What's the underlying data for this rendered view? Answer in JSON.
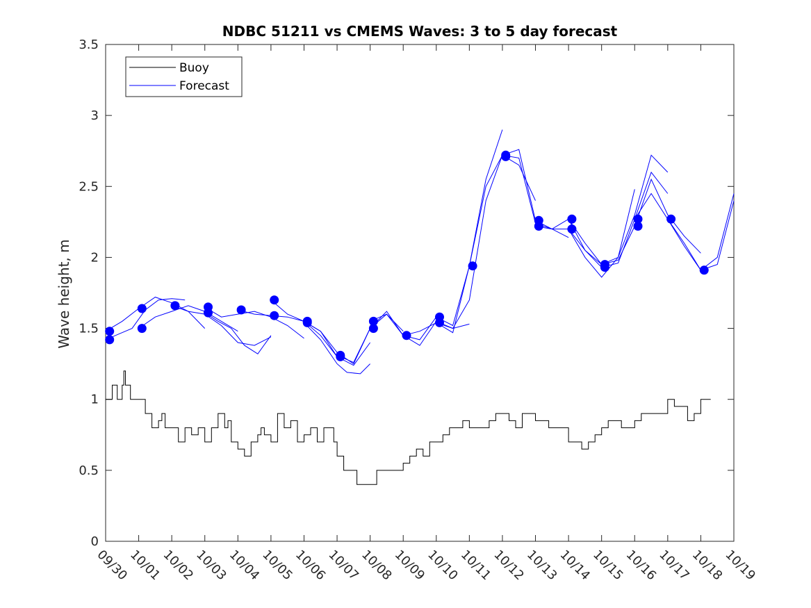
{
  "chart_data": {
    "type": "line",
    "title": "NDBC 51211 vs CMEMS Waves: 3 to 5 day forecast",
    "xlabel": "",
    "ylabel": "Wave height, m",
    "xlim": [
      0,
      19
    ],
    "ylim": [
      0,
      3.5
    ],
    "yticks": [
      0,
      0.5,
      1,
      1.5,
      2,
      2.5,
      3,
      3.5
    ],
    "ytick_labels": [
      "0",
      "0.5",
      "1",
      "1.5",
      "2",
      "2.5",
      "3",
      "3.5"
    ],
    "xtick_labels": [
      "09/30",
      "10/01",
      "10/02",
      "10/03",
      "10/04",
      "10/05",
      "10/06",
      "10/07",
      "10/08",
      "10/09",
      "10/10",
      "10/11",
      "10/12",
      "10/13",
      "10/14",
      "10/15",
      "10/16",
      "10/17",
      "10/18",
      "10/19"
    ],
    "legend": {
      "position": "top-left",
      "entries": [
        "Buoy",
        "Forecast"
      ]
    },
    "colors": {
      "buoy": "#000000",
      "forecast": "#0000ff",
      "axes": "#262626"
    },
    "buoy_series": {
      "name": "Buoy",
      "x": [
        0,
        0.08,
        0.2,
        0.35,
        0.5,
        0.55,
        0.6,
        0.75,
        0.9,
        1.0,
        1.2,
        1.4,
        1.6,
        1.7,
        1.8,
        2.0,
        2.2,
        2.4,
        2.6,
        2.8,
        3.0,
        3.2,
        3.4,
        3.6,
        3.7,
        3.8,
        4.0,
        4.2,
        4.4,
        4.6,
        4.7,
        4.8,
        5.0,
        5.2,
        5.4,
        5.6,
        5.8,
        6.0,
        6.2,
        6.4,
        6.5,
        6.6,
        6.9,
        7.0,
        7.2,
        7.4,
        7.6,
        7.8,
        8.0,
        8.2,
        8.4,
        8.6,
        8.8,
        9.0,
        9.2,
        9.4,
        9.6,
        9.8,
        10.0,
        10.2,
        10.4,
        10.6,
        10.8,
        11.0,
        11.2,
        11.4,
        11.6,
        11.8,
        12.0,
        12.2,
        12.4,
        12.6,
        12.8,
        13.0,
        13.2,
        13.4,
        13.6,
        13.8,
        14.0,
        14.2,
        14.4,
        14.6,
        14.8,
        15.0,
        15.2,
        15.4,
        15.6,
        15.8,
        16.0,
        16.2,
        16.4,
        16.6,
        16.8,
        17.0,
        17.2,
        17.4,
        17.6,
        17.8,
        18.0,
        18.2,
        18.3
      ],
      "y": [
        1.0,
        1.0,
        1.1,
        1.0,
        1.1,
        1.2,
        1.1,
        1.0,
        1.0,
        1.0,
        0.9,
        0.8,
        0.85,
        0.9,
        0.8,
        0.8,
        0.7,
        0.8,
        0.75,
        0.8,
        0.7,
        0.8,
        0.9,
        0.8,
        0.85,
        0.7,
        0.65,
        0.6,
        0.7,
        0.75,
        0.8,
        0.75,
        0.7,
        0.9,
        0.8,
        0.85,
        0.7,
        0.75,
        0.8,
        0.7,
        0.7,
        0.8,
        0.7,
        0.6,
        0.5,
        0.5,
        0.4,
        0.4,
        0.4,
        0.5,
        0.5,
        0.5,
        0.5,
        0.55,
        0.6,
        0.65,
        0.6,
        0.7,
        0.7,
        0.75,
        0.8,
        0.8,
        0.85,
        0.8,
        0.8,
        0.8,
        0.85,
        0.9,
        0.9,
        0.85,
        0.8,
        0.9,
        0.9,
        0.85,
        0.85,
        0.8,
        0.8,
        0.8,
        0.7,
        0.7,
        0.65,
        0.7,
        0.75,
        0.8,
        0.85,
        0.85,
        0.8,
        0.8,
        0.85,
        0.9,
        0.9,
        0.9,
        0.9,
        1.0,
        0.95,
        0.95,
        0.85,
        0.9,
        1.0,
        1.0,
        1.0
      ]
    },
    "forecast_series": [
      {
        "name": "Forecast run 1",
        "x": [
          0,
          0.5,
          1,
          1.5,
          2,
          2.5,
          3
        ],
        "y": [
          1.48,
          1.55,
          1.64,
          1.72,
          1.68,
          1.62,
          1.5
        ]
      },
      {
        "name": "Forecast run 2",
        "x": [
          0,
          0.4,
          0.8,
          1.2,
          1.6,
          2,
          2.4
        ],
        "y": [
          1.42,
          1.46,
          1.5,
          1.63,
          1.7,
          1.71,
          1.7
        ]
      },
      {
        "name": "Forecast run 3",
        "x": [
          1,
          1.5,
          2,
          2.5,
          3,
          3.5,
          4
        ],
        "y": [
          1.5,
          1.58,
          1.62,
          1.66,
          1.62,
          1.55,
          1.48
        ]
      },
      {
        "name": "Forecast run 4",
        "x": [
          2,
          2.5,
          3,
          3.5,
          4,
          4.5,
          5
        ],
        "y": [
          1.66,
          1.62,
          1.6,
          1.52,
          1.4,
          1.38,
          1.44
        ]
      },
      {
        "name": "Forecast run 5",
        "x": [
          3,
          3.5,
          4,
          4.5,
          5,
          5.5,
          6
        ],
        "y": [
          1.65,
          1.58,
          1.6,
          1.62,
          1.58,
          1.52,
          1.43
        ]
      },
      {
        "name": "Forecast run 6",
        "x": [
          3,
          3.4,
          3.8,
          4.2,
          4.6,
          5
        ],
        "y": [
          1.61,
          1.55,
          1.5,
          1.38,
          1.32,
          1.45
        ]
      },
      {
        "name": "Forecast run 7",
        "x": [
          4,
          4.5,
          5,
          5.5,
          6,
          6.5,
          7
        ],
        "y": [
          1.63,
          1.6,
          1.59,
          1.58,
          1.55,
          1.48,
          1.3
        ]
      },
      {
        "name": "Forecast run 8",
        "x": [
          5,
          5.5,
          6,
          6.5,
          7,
          7.5,
          8
        ],
        "y": [
          1.7,
          1.6,
          1.55,
          1.45,
          1.3,
          1.24,
          1.4
        ]
      },
      {
        "name": "Forecast run 9",
        "x": [
          6,
          6.5,
          7,
          7.5,
          8,
          8.5,
          9
        ],
        "y": [
          1.55,
          1.48,
          1.33,
          1.25,
          1.5,
          1.6,
          1.48
        ]
      },
      {
        "name": "Forecast run 10",
        "x": [
          6,
          6.5,
          7,
          7.3,
          7.7,
          8
        ],
        "y": [
          1.54,
          1.42,
          1.25,
          1.19,
          1.18,
          1.25
        ]
      },
      {
        "name": "Forecast run 11",
        "x": [
          7,
          7.5,
          8,
          8.5,
          9,
          9.5,
          10
        ],
        "y": [
          1.31,
          1.26,
          1.5,
          1.62,
          1.45,
          1.42,
          1.58
        ]
      },
      {
        "name": "Forecast run 12",
        "x": [
          8,
          8.5,
          9,
          9.5,
          10,
          10.5,
          11
        ],
        "y": [
          1.55,
          1.6,
          1.45,
          1.38,
          1.55,
          1.5,
          1.53
        ]
      },
      {
        "name": "Forecast run 13",
        "x": [
          9,
          9.5,
          10,
          10.5,
          11,
          11.5,
          12
        ],
        "y": [
          1.45,
          1.48,
          1.54,
          1.47,
          1.94,
          2.55,
          2.9
        ]
      },
      {
        "name": "Forecast run 14",
        "x": [
          10,
          10.5,
          11,
          11.5,
          12,
          12.5,
          13
        ],
        "y": [
          1.58,
          1.52,
          1.94,
          2.5,
          2.72,
          2.65,
          2.4
        ]
      },
      {
        "name": "Forecast run 15",
        "x": [
          10,
          10.5,
          11,
          11.5,
          12,
          12.5,
          13,
          13.5,
          14
        ],
        "y": [
          1.54,
          1.5,
          1.7,
          2.4,
          2.72,
          2.7,
          2.24,
          2.2,
          2.14
        ]
      },
      {
        "name": "Forecast run 16",
        "x": [
          12,
          12.5,
          13,
          13.5,
          14,
          14.5,
          15
        ],
        "y": [
          2.72,
          2.76,
          2.26,
          2.2,
          2.27,
          2.05,
          1.95
        ]
      },
      {
        "name": "Forecast run 17",
        "x": [
          13,
          13.5,
          14,
          14.5,
          15,
          15.5,
          16
        ],
        "y": [
          2.22,
          2.2,
          2.2,
          2.0,
          1.86,
          2.0,
          2.48
        ]
      },
      {
        "name": "Forecast run 18",
        "x": [
          14,
          14.5,
          15,
          15.5,
          16,
          16.5,
          17
        ],
        "y": [
          2.27,
          2.1,
          1.95,
          2.0,
          2.3,
          2.72,
          2.6
        ]
      },
      {
        "name": "Forecast run 19",
        "x": [
          14,
          14.5,
          15,
          15.5,
          16,
          16.5,
          17
        ],
        "y": [
          2.2,
          2.05,
          1.93,
          1.96,
          2.27,
          2.6,
          2.45
        ]
      },
      {
        "name": "Forecast run 20",
        "x": [
          15,
          15.5,
          16,
          16.5,
          17,
          17.5,
          18
        ],
        "y": [
          1.95,
          1.98,
          2.22,
          2.55,
          2.3,
          2.15,
          2.03
        ]
      },
      {
        "name": "Forecast run 21",
        "x": [
          16,
          16.5,
          17,
          17.5,
          18,
          18.5,
          19
        ],
        "y": [
          2.27,
          2.45,
          2.27,
          2.08,
          1.91,
          1.95,
          2.4
        ]
      },
      {
        "name": "Forecast run 22",
        "x": [
          17,
          17.5,
          18,
          18.5,
          19
        ],
        "y": [
          2.27,
          2.1,
          1.91,
          2.0,
          2.45
        ]
      }
    ],
    "forecast_markers": {
      "x": [
        0.12,
        0.12,
        1.1,
        1.1,
        2.1,
        3.1,
        3.1,
        4.1,
        5.1,
        5.1,
        6.1,
        6.1,
        7.1,
        7.1,
        8.1,
        8.1,
        9.1,
        10.1,
        10.1,
        11.1,
        12.1,
        12.1,
        13.1,
        13.1,
        14.1,
        14.1,
        15.1,
        15.1,
        16.1,
        16.1,
        17.1,
        18.1
      ],
      "y": [
        1.48,
        1.42,
        1.64,
        1.5,
        1.66,
        1.65,
        1.61,
        1.63,
        1.7,
        1.59,
        1.55,
        1.54,
        1.31,
        1.3,
        1.55,
        1.5,
        1.45,
        1.58,
        1.54,
        1.94,
        2.72,
        2.71,
        2.26,
        2.22,
        2.27,
        2.2,
        1.95,
        1.93,
        2.27,
        2.22,
        2.27,
        1.91
      ]
    }
  }
}
